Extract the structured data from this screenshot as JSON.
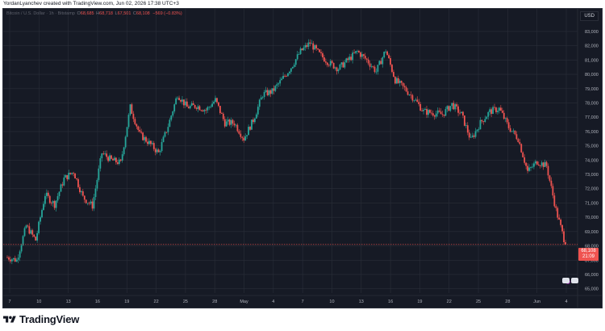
{
  "caption": "YordanLyanchev created with TradingView.com, Jun 02, 2026 17:38 UTC+3",
  "legend": {
    "symbol": "Bitcoin / U.S. Dollar · 1h · Bitstamp",
    "ohlc": [
      {
        "label": "O",
        "value": "68,685"
      },
      {
        "label": "H",
        "value": "68,718"
      },
      {
        "label": "L",
        "value": "67,501"
      },
      {
        "label": "C",
        "value": "68,108"
      }
    ],
    "change": "−569 (−0.83%)"
  },
  "currency": "USD",
  "last_price": {
    "price": "68,108",
    "countdown": "21:09"
  },
  "footer": {
    "wordmark": "TradingView"
  },
  "colors": {
    "up": "#26a69a",
    "down": "#ef5350",
    "background": "#161a25",
    "grid": "#2a2e39",
    "axis_text": "#b2b5be"
  },
  "chart_data": {
    "type": "line",
    "style": "candlestick (hourly)",
    "title": "",
    "xlabel": "",
    "ylabel": "",
    "x_ticks": [
      "7",
      "10",
      "13",
      "16",
      "19",
      "22",
      "25",
      "28",
      "May",
      "4",
      "7",
      "10",
      "13",
      "16",
      "19",
      "22",
      "25",
      "28",
      "Jun",
      "4"
    ],
    "y_ticks": [
      83000,
      82000,
      81000,
      80000,
      79000,
      78000,
      77000,
      76000,
      75000,
      74000,
      73000,
      72000,
      71000,
      70000,
      69000,
      68000,
      67000,
      66000,
      65000
    ],
    "ylim": [
      64700,
      83900
    ],
    "grid": true,
    "series": [
      {
        "values": [
          {
            "x": "Apr 4",
            "y": 67200
          },
          {
            "x": "Apr 5",
            "y": 67000
          },
          {
            "x": "Apr 6",
            "y": 69400
          },
          {
            "x": "Apr 7",
            "y": 68400
          },
          {
            "x": "Apr 8",
            "y": 71600
          },
          {
            "x": "Apr 9",
            "y": 70900
          },
          {
            "x": "Apr 10",
            "y": 72700
          },
          {
            "x": "Apr 11",
            "y": 73200
          },
          {
            "x": "Apr 12",
            "y": 71400
          },
          {
            "x": "Apr 13",
            "y": 70800
          },
          {
            "x": "Apr 14",
            "y": 74500
          },
          {
            "x": "Apr 15",
            "y": 74000
          },
          {
            "x": "Apr 16",
            "y": 73800
          },
          {
            "x": "Apr 17",
            "y": 77700
          },
          {
            "x": "Apr 18",
            "y": 75800
          },
          {
            "x": "Apr 19",
            "y": 75200
          },
          {
            "x": "Apr 20",
            "y": 74500
          },
          {
            "x": "Apr 21",
            "y": 76400
          },
          {
            "x": "Apr 22",
            "y": 78600
          },
          {
            "x": "Apr 23",
            "y": 77700
          },
          {
            "x": "Apr 24",
            "y": 77800
          },
          {
            "x": "Apr 25",
            "y": 77500
          },
          {
            "x": "Apr 26",
            "y": 78200
          },
          {
            "x": "Apr 27",
            "y": 76600
          },
          {
            "x": "Apr 28",
            "y": 76600
          },
          {
            "x": "Apr 29",
            "y": 75500
          },
          {
            "x": "Apr 30",
            "y": 76800
          },
          {
            "x": "May 1",
            "y": 78600
          },
          {
            "x": "May 2",
            "y": 78800
          },
          {
            "x": "May 3",
            "y": 79600
          },
          {
            "x": "May 4",
            "y": 80500
          },
          {
            "x": "May 5",
            "y": 81600
          },
          {
            "x": "May 6",
            "y": 82200
          },
          {
            "x": "May 7",
            "y": 81400
          },
          {
            "x": "May 8",
            "y": 80800
          },
          {
            "x": "May 9",
            "y": 80400
          },
          {
            "x": "May 10",
            "y": 81000
          },
          {
            "x": "May 11",
            "y": 81600
          },
          {
            "x": "May 12",
            "y": 81000
          },
          {
            "x": "May 13",
            "y": 80200
          },
          {
            "x": "May 14",
            "y": 81700
          },
          {
            "x": "May 15",
            "y": 79600
          },
          {
            "x": "May 16",
            "y": 79000
          },
          {
            "x": "May 17",
            "y": 78300
          },
          {
            "x": "May 18",
            "y": 77400
          },
          {
            "x": "May 19",
            "y": 77300
          },
          {
            "x": "May 20",
            "y": 77200
          },
          {
            "x": "May 21",
            "y": 77900
          },
          {
            "x": "May 22",
            "y": 77200
          },
          {
            "x": "May 23",
            "y": 75400
          },
          {
            "x": "May 24",
            "y": 76600
          },
          {
            "x": "May 25",
            "y": 77400
          },
          {
            "x": "May 26",
            "y": 77600
          },
          {
            "x": "May 27",
            "y": 76300
          },
          {
            "x": "May 28",
            "y": 75500
          },
          {
            "x": "May 29",
            "y": 73200
          },
          {
            "x": "May 30",
            "y": 73900
          },
          {
            "x": "May 31",
            "y": 73600
          },
          {
            "x": "Jun 1",
            "y": 70500
          },
          {
            "x": "Jun 2",
            "y": 68100
          }
        ]
      }
    ]
  }
}
